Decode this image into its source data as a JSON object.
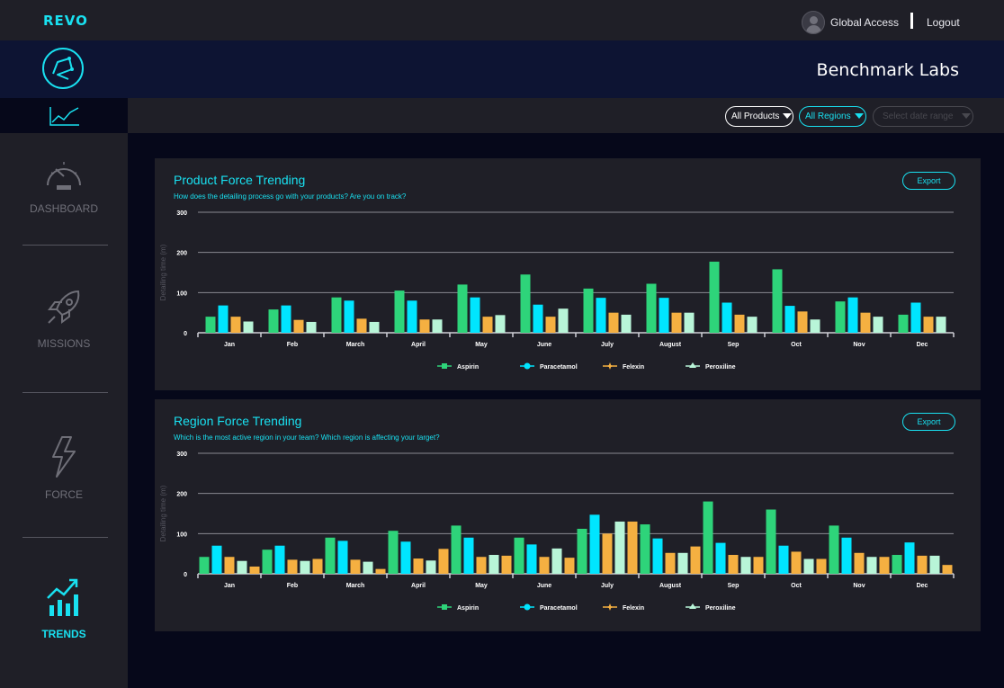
{
  "app": {
    "brand": "REVO",
    "page_title": "Benchmark Labs"
  },
  "user": {
    "name": "Global Access",
    "logout_label": "Logout"
  },
  "nav": [
    {
      "label": "DASHBOARD",
      "icon": "speedometer-icon",
      "active": false
    },
    {
      "label": "MISSIONS",
      "icon": "rocket-icon",
      "active": false
    },
    {
      "label": "FORCE",
      "icon": "lightning-icon",
      "active": false
    },
    {
      "label": "TRENDS",
      "icon": "trend-chart-icon",
      "active": true
    }
  ],
  "filters": {
    "products": "All Products",
    "regions": "All Regions",
    "date_placeholder": "Select date range"
  },
  "colors": {
    "accent": "#19e0f0",
    "aspirin": "#2ed47a",
    "paracetamol": "#00e5ff",
    "felexin": "#f5b041",
    "peroxiline": "#b8f5d8"
  },
  "cards": [
    {
      "title": "Product Force Trending",
      "subtitle": "How does the detailing process go with your products? Are you on track?",
      "export_label": "Export"
    },
    {
      "title": "Region Force Trending",
      "subtitle": "Which is the most active region in your team? Which region is affecting your target?",
      "export_label": "Export"
    }
  ],
  "chart_data": [
    {
      "type": "bar",
      "ylabel": "Detailing time (m)",
      "ylim": [
        0,
        300
      ],
      "yticks": [
        0,
        100,
        200,
        300
      ],
      "grid": true,
      "legend_position": "bottom",
      "categories": [
        "Jan",
        "Feb",
        "March",
        "April",
        "May",
        "June",
        "July",
        "August",
        "Sep",
        "Oct",
        "Nov",
        "Dec"
      ],
      "series": [
        {
          "name": "Aspirin",
          "color": "#2ed47a",
          "values": [
            40,
            58,
            88,
            105,
            120,
            145,
            110,
            122,
            177,
            158,
            78,
            45
          ]
        },
        {
          "name": "Paracetamol",
          "color": "#00e5ff",
          "values": [
            68,
            68,
            80,
            80,
            88,
            70,
            87,
            87,
            75,
            67,
            88,
            75
          ]
        },
        {
          "name": "Felexin",
          "color": "#f5b041",
          "values": [
            40,
            32,
            35,
            33,
            40,
            40,
            50,
            50,
            45,
            53,
            50,
            40
          ]
        },
        {
          "name": "Peroxiline",
          "color": "#b8f5d8",
          "values": [
            28,
            27,
            27,
            33,
            44,
            60,
            45,
            50,
            40,
            33,
            40,
            40
          ]
        }
      ]
    },
    {
      "type": "bar",
      "ylabel": "Detailing time (m)",
      "ylim": [
        0,
        300
      ],
      "yticks": [
        0,
        100,
        200,
        300
      ],
      "grid": true,
      "legend_position": "bottom",
      "categories": [
        "Jan",
        "Feb",
        "March",
        "April",
        "May",
        "June",
        "July",
        "August",
        "Sep",
        "Oct",
        "Nov",
        "Dec"
      ],
      "series": [
        {
          "name": "Aspirin",
          "color": "#2ed47a",
          "values": [
            42,
            60,
            90,
            107,
            120,
            90,
            112,
            123,
            180,
            160,
            120,
            47
          ]
        },
        {
          "name": "Paracetamol",
          "color": "#00e5ff",
          "values": [
            70,
            70,
            82,
            80,
            90,
            73,
            147,
            88,
            77,
            70,
            90,
            78
          ]
        },
        {
          "name": "Felexin",
          "color": "#f5b041",
          "values": [
            42,
            35,
            35,
            38,
            42,
            42,
            100,
            52,
            47,
            55,
            52,
            45
          ]
        },
        {
          "name": "Peroxiline",
          "color": "#b8f5d8",
          "values": [
            32,
            32,
            30,
            33,
            47,
            63,
            130,
            52,
            42,
            37,
            42,
            45
          ]
        },
        {
          "name": "",
          "color": "#f5b041",
          "values": [
            18,
            37,
            12,
            62,
            45,
            40,
            130,
            68,
            42,
            37,
            42,
            22
          ]
        }
      ]
    }
  ]
}
